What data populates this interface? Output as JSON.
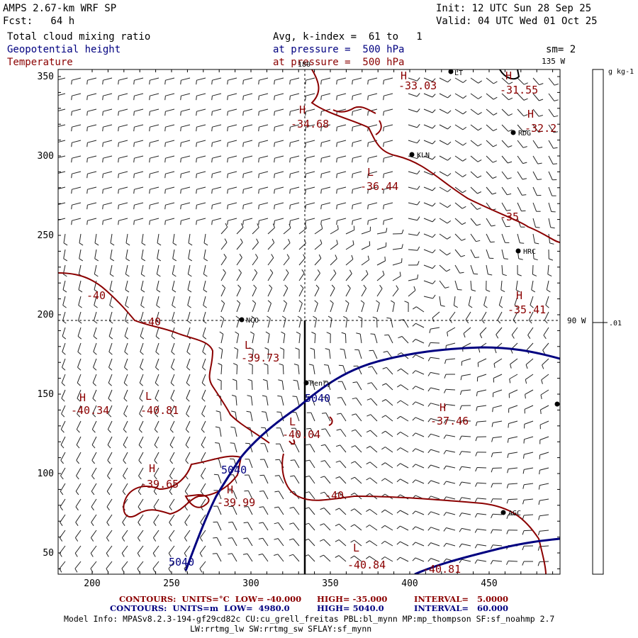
{
  "header": {
    "model": "AMPS 2.67-km WRF SP",
    "forecast": "Fcst:   64 h",
    "init": "Init: 12 UTC Sun 28 Sep 25",
    "valid": "Valid: 04 UTC Wed 01 Oct 25",
    "field1": "Total cloud mixing ratio",
    "field2": "Geopotential height",
    "field3": "Temperature",
    "avg": "Avg, k-index =  61 to   1",
    "pressure1": "at pressure =  500 hPa",
    "pressure2": "at pressure =  500 hPa",
    "smoothing": "sm= 2"
  },
  "map": {
    "x_ticks": [
      "200",
      "250",
      "300",
      "350",
      "400",
      "450"
    ],
    "y_ticks": [
      "350",
      "300",
      "250",
      "200",
      "150",
      "100",
      "50"
    ],
    "meridians": {
      "top": "180",
      "top_right": "135 W",
      "right": "90 W"
    },
    "stations": [
      {
        "name": "NCO"
      },
      {
        "name": "Henry"
      },
      {
        "name": "KLN"
      },
      {
        "name": "RDG"
      },
      {
        "name": "HRC"
      },
      {
        "name": "AGC"
      },
      {
        "name": "LT"
      }
    ],
    "temperature_labels": [
      {
        "sym": "H",
        "val": "-33.03"
      },
      {
        "sym": "H",
        "val": "-31.55"
      },
      {
        "sym": "H",
        "val": "-34.68"
      },
      {
        "sym": "H",
        "val": "-32.2"
      },
      {
        "sym": "L",
        "val": "-36.44"
      },
      {
        "sym": "",
        "val": "-35"
      },
      {
        "sym": "H",
        "val": "-35.41"
      },
      {
        "sym": "",
        "val": "-40"
      },
      {
        "sym": "",
        "val": "-40"
      },
      {
        "sym": "L",
        "val": "-39.73"
      },
      {
        "sym": "H",
        "val": "-40.34"
      },
      {
        "sym": "L",
        "val": "-40.81"
      },
      {
        "sym": "L",
        "val": "-40.04"
      },
      {
        "sym": "H",
        "val": "-37.46"
      },
      {
        "sym": "H",
        "val": "-39.65"
      },
      {
        "sym": "H",
        "val": "-39.99"
      },
      {
        "sym": "",
        "val": "-40"
      },
      {
        "sym": "L",
        "val": "-40.84"
      },
      {
        "sym": "",
        "val": "-40.81"
      }
    ],
    "height_labels": [
      "5040",
      "5040",
      "5040"
    ]
  },
  "colorbar": {
    "unit": "g kg-1",
    "tick": ".01"
  },
  "footer": {
    "temp_contours": "CONTOURS:  UNITS=°C  LOW= -40.000",
    "temp_high": "HIGH= -35.000",
    "temp_interval": "INTERVAL=   5.0000",
    "hgt_contours": "CONTOURS:  UNITS=m  LOW=  4980.0",
    "hgt_high": "HIGH= 5040.0",
    "hgt_interval": "INTERVAL=   60.000",
    "model_info": "Model Info: MPASv8.2.3-194-gf29cd82c CU:cu_grell_freitas PBL:bl_mynn MP:mp_thompson SF:sf_noahmp 2.7",
    "model_info2": "LW:rrtmg_lw SW:rrtmg_sw SFLAY:sf_mynn"
  },
  "colors": {
    "temperature": "#8b0000",
    "height": "#000080",
    "text": "#000000"
  }
}
